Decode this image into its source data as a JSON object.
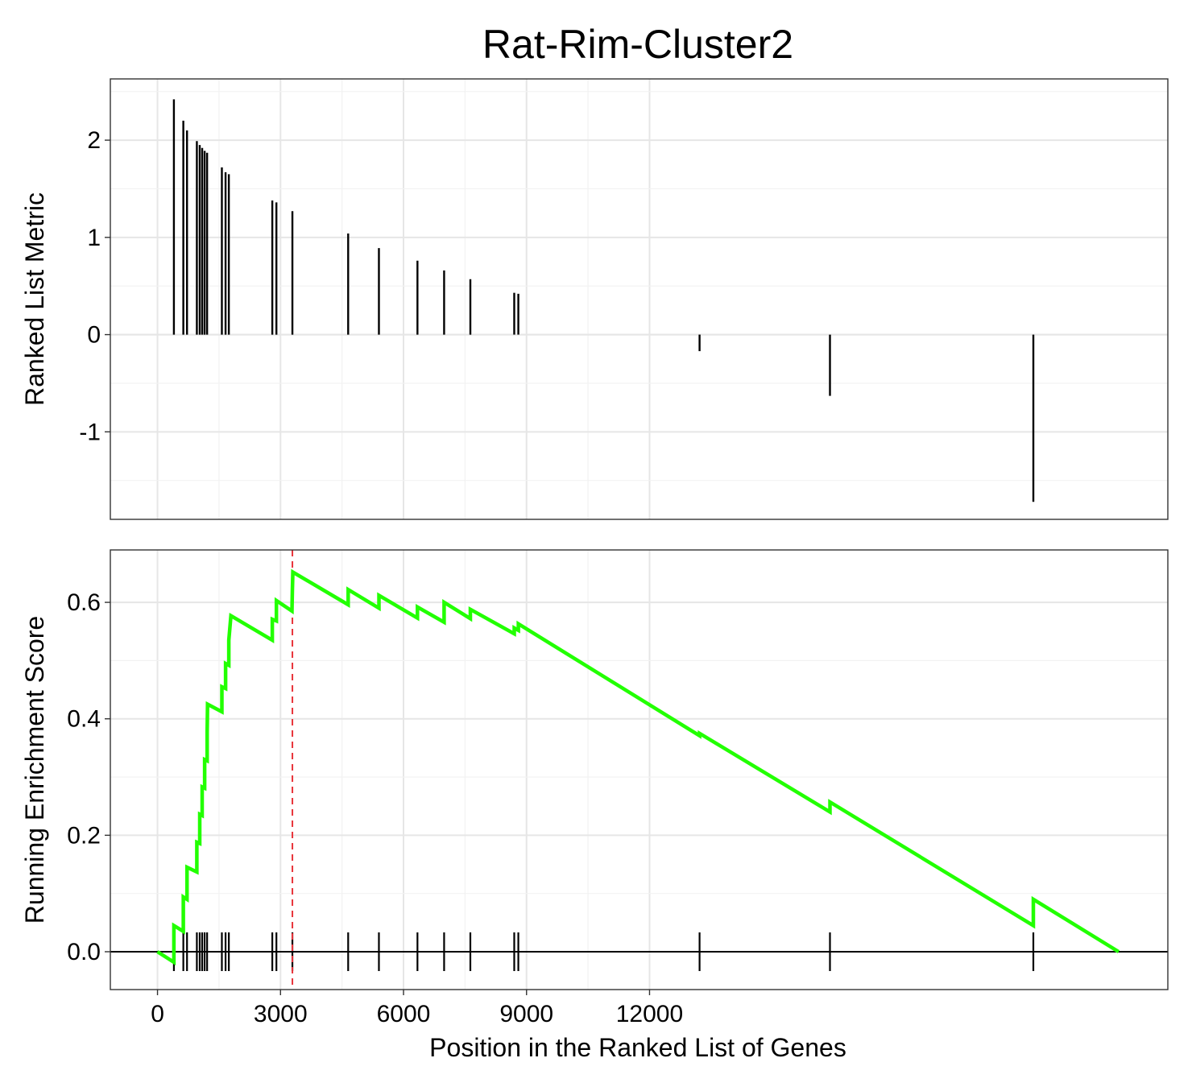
{
  "chart_data": {
    "type": "line",
    "title": "Rat-Rim-Cluster2",
    "xlabel": "Position in the Ranked List of Genes",
    "xlim": [
      -1150,
      24640
    ],
    "x_ticks": [
      "0",
      "3000",
      "6000",
      "9000",
      "12000"
    ],
    "x_tick_values": [
      0,
      3000,
      6000,
      9000,
      12000
    ],
    "grid": true,
    "panels": [
      {
        "name": "ranked-metric",
        "type": "bar",
        "ylabel": "Ranked List Metric",
        "ylim": [
          -1.9,
          2.63
        ],
        "y_ticks": [
          "-1",
          "0",
          "1",
          "2"
        ],
        "y_tick_values": [
          -1,
          0,
          1,
          2
        ],
        "bars": [
          {
            "x": 400,
            "y": 2.42
          },
          {
            "x": 630,
            "y": 2.2
          },
          {
            "x": 720,
            "y": 2.1
          },
          {
            "x": 960,
            "y": 1.99
          },
          {
            "x": 1030,
            "y": 1.95
          },
          {
            "x": 1090,
            "y": 1.92
          },
          {
            "x": 1150,
            "y": 1.89
          },
          {
            "x": 1210,
            "y": 1.87
          },
          {
            "x": 1570,
            "y": 1.72
          },
          {
            "x": 1660,
            "y": 1.67
          },
          {
            "x": 1740,
            "y": 1.65
          },
          {
            "x": 2800,
            "y": 1.38
          },
          {
            "x": 2900,
            "y": 1.36
          },
          {
            "x": 3290,
            "y": 1.27
          },
          {
            "x": 4650,
            "y": 1.04
          },
          {
            "x": 5400,
            "y": 0.89
          },
          {
            "x": 6340,
            "y": 0.76
          },
          {
            "x": 6990,
            "y": 0.66
          },
          {
            "x": 7630,
            "y": 0.57
          },
          {
            "x": 8700,
            "y": 0.43
          },
          {
            "x": 8800,
            "y": 0.42
          },
          {
            "x": 13220,
            "y": -0.17
          },
          {
            "x": 16400,
            "y": -0.63
          },
          {
            "x": 21360,
            "y": -1.72
          }
        ]
      },
      {
        "name": "running-enrichment",
        "type": "line",
        "ylabel": "Running Enrichment Score",
        "ylim": [
          -0.065,
          0.69
        ],
        "y_ticks": [
          "0.0",
          "0.2",
          "0.4",
          "0.6"
        ],
        "y_tick_values": [
          0,
          0.2,
          0.4,
          0.6
        ],
        "baseline": 0,
        "peak_x": 3290,
        "line_color": "#22ff00",
        "peak_line_color": "#e8333a",
        "hit_positions": [
          400,
          630,
          720,
          960,
          1030,
          1090,
          1150,
          1210,
          1570,
          1660,
          1740,
          2800,
          2900,
          3290,
          4650,
          5400,
          6340,
          6990,
          7630,
          8700,
          8800,
          13220,
          16400,
          21360
        ],
        "series": [
          {
            "values": [
              [
                0,
                0
              ],
              [
                400,
                -0.018
              ],
              [
                400,
                0.045
              ],
              [
                630,
                0.035
              ],
              [
                630,
                0.094
              ],
              [
                720,
                0.09
              ],
              [
                720,
                0.145
              ],
              [
                960,
                0.137
              ],
              [
                960,
                0.188
              ],
              [
                1030,
                0.186
              ],
              [
                1030,
                0.236
              ],
              [
                1090,
                0.234
              ],
              [
                1090,
                0.283
              ],
              [
                1150,
                0.281
              ],
              [
                1150,
                0.33
              ],
              [
                1210,
                0.328
              ],
              [
                1210,
                0.377
              ],
              [
                1220,
                0.425
              ],
              [
                1570,
                0.412
              ],
              [
                1570,
                0.455
              ],
              [
                1660,
                0.452
              ],
              [
                1660,
                0.495
              ],
              [
                1740,
                0.492
              ],
              [
                1740,
                0.535
              ],
              [
                1790,
                0.577
              ],
              [
                2800,
                0.535
              ],
              [
                2800,
                0.571
              ],
              [
                2900,
                0.568
              ],
              [
                2900,
                0.603
              ],
              [
                3280,
                0.585
              ],
              [
                3290,
                0.62
              ],
              [
                3300,
                0.652
              ],
              [
                4650,
                0.596
              ],
              [
                4650,
                0.622
              ],
              [
                5400,
                0.59
              ],
              [
                5400,
                0.612
              ],
              [
                6340,
                0.573
              ],
              [
                6340,
                0.592
              ],
              [
                6990,
                0.566
              ],
              [
                6990,
                0.6
              ],
              [
                7630,
                0.572
              ],
              [
                7630,
                0.588
              ],
              [
                8700,
                0.546
              ],
              [
                8700,
                0.556
              ],
              [
                8800,
                0.552
              ],
              [
                8800,
                0.563
              ],
              [
                13220,
                0.371
              ],
              [
                13220,
                0.375
              ],
              [
                16400,
                0.24
              ],
              [
                16400,
                0.257
              ],
              [
                21360,
                0.045
              ],
              [
                21360,
                0.09
              ],
              [
                23440,
                0
              ]
            ]
          }
        ]
      }
    ]
  }
}
